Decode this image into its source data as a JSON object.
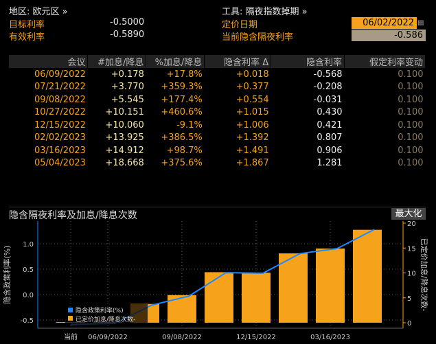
{
  "header": {
    "region_label": "地区: 欧元区 »",
    "instrument_label": "工具: 隔夜指数掉期 »",
    "target_rate_label": "目标利率",
    "target_rate_value": "-0.5000",
    "effective_rate_label": "有效利率",
    "effective_rate_value": "-0.5890",
    "pricing_date_label": "定价日期",
    "pricing_date_value": "06/02/2022",
    "current_implied_label": "当前隐含隔夜利率",
    "current_implied_value": "-0.586"
  },
  "table": {
    "columns": [
      "会议",
      "#加息/降息",
      "%加息/降息",
      "隐含利率 Δ",
      "隐含利率",
      "假定利率变动"
    ],
    "rows": [
      [
        "06/09/2022",
        "+0.178",
        "+17.8%",
        "+0.018",
        "-0.568",
        "0.100"
      ],
      [
        "07/21/2022",
        "+3.770",
        "+359.3%",
        "+0.377",
        "-0.208",
        "0.100"
      ],
      [
        "09/08/2022",
        "+5.545",
        "+177.4%",
        "+0.554",
        "-0.031",
        "0.100"
      ],
      [
        "10/27/2022",
        "+10.151",
        "+460.6%",
        "+1.015",
        "0.430",
        "0.100"
      ],
      [
        "12/15/2022",
        "+10.060",
        "-9.1%",
        "+1.006",
        "0.421",
        "0.100"
      ],
      [
        "02/02/2023",
        "+13.925",
        "+386.5%",
        "+1.392",
        "0.807",
        "0.100"
      ],
      [
        "03/16/2023",
        "+14.912",
        "+98.7%",
        "+1.491",
        "0.906",
        "0.100"
      ],
      [
        "05/04/2023",
        "+18.668",
        "+375.6%",
        "+1.867",
        "1.281",
        "0.100"
      ]
    ]
  },
  "chart": {
    "title": "隐含隔夜利率及加息/降息次数",
    "maximize_label": "最大化"
  },
  "chart_data": {
    "type": "bar+line",
    "categories": [
      "当前",
      "06/09/2022",
      "07/21/2022",
      "09/08/2022",
      "10/27/2022",
      "12/15/2022",
      "02/02/2023",
      "03/16/2023",
      "05/04/2023"
    ],
    "x_tick_labels": [
      "当前",
      "06/09/2022",
      "09/08/2022",
      "12/15/2022",
      "03/16/2023"
    ],
    "series": [
      {
        "name": "隐含政策利率(%)",
        "type": "line",
        "axis": "left",
        "color": "#1e88ff",
        "values": [
          -0.586,
          -0.568,
          -0.208,
          -0.031,
          0.43,
          0.421,
          0.807,
          0.906,
          1.281
        ]
      },
      {
        "name": "已定价加息/降息次数-",
        "type": "bar",
        "axis": "right",
        "color": "#f7a21b",
        "values": [
          0,
          0.178,
          3.77,
          5.545,
          10.151,
          10.06,
          13.925,
          14.912,
          18.668
        ]
      }
    ],
    "ylabel_left": "隐含政策利率(%)",
    "ylabel_right": "已定价加息/降息次数-",
    "ylim_left": [
      -0.75,
      1.35
    ],
    "yticks_left": [
      "-0.5",
      "0.0",
      "0.5",
      "1.0"
    ],
    "ylim_right": [
      -1.5,
      20
    ],
    "yticks_right": [
      "0",
      "5",
      "10",
      "15",
      "20"
    ],
    "grid": true,
    "legend": "bottom-left"
  }
}
